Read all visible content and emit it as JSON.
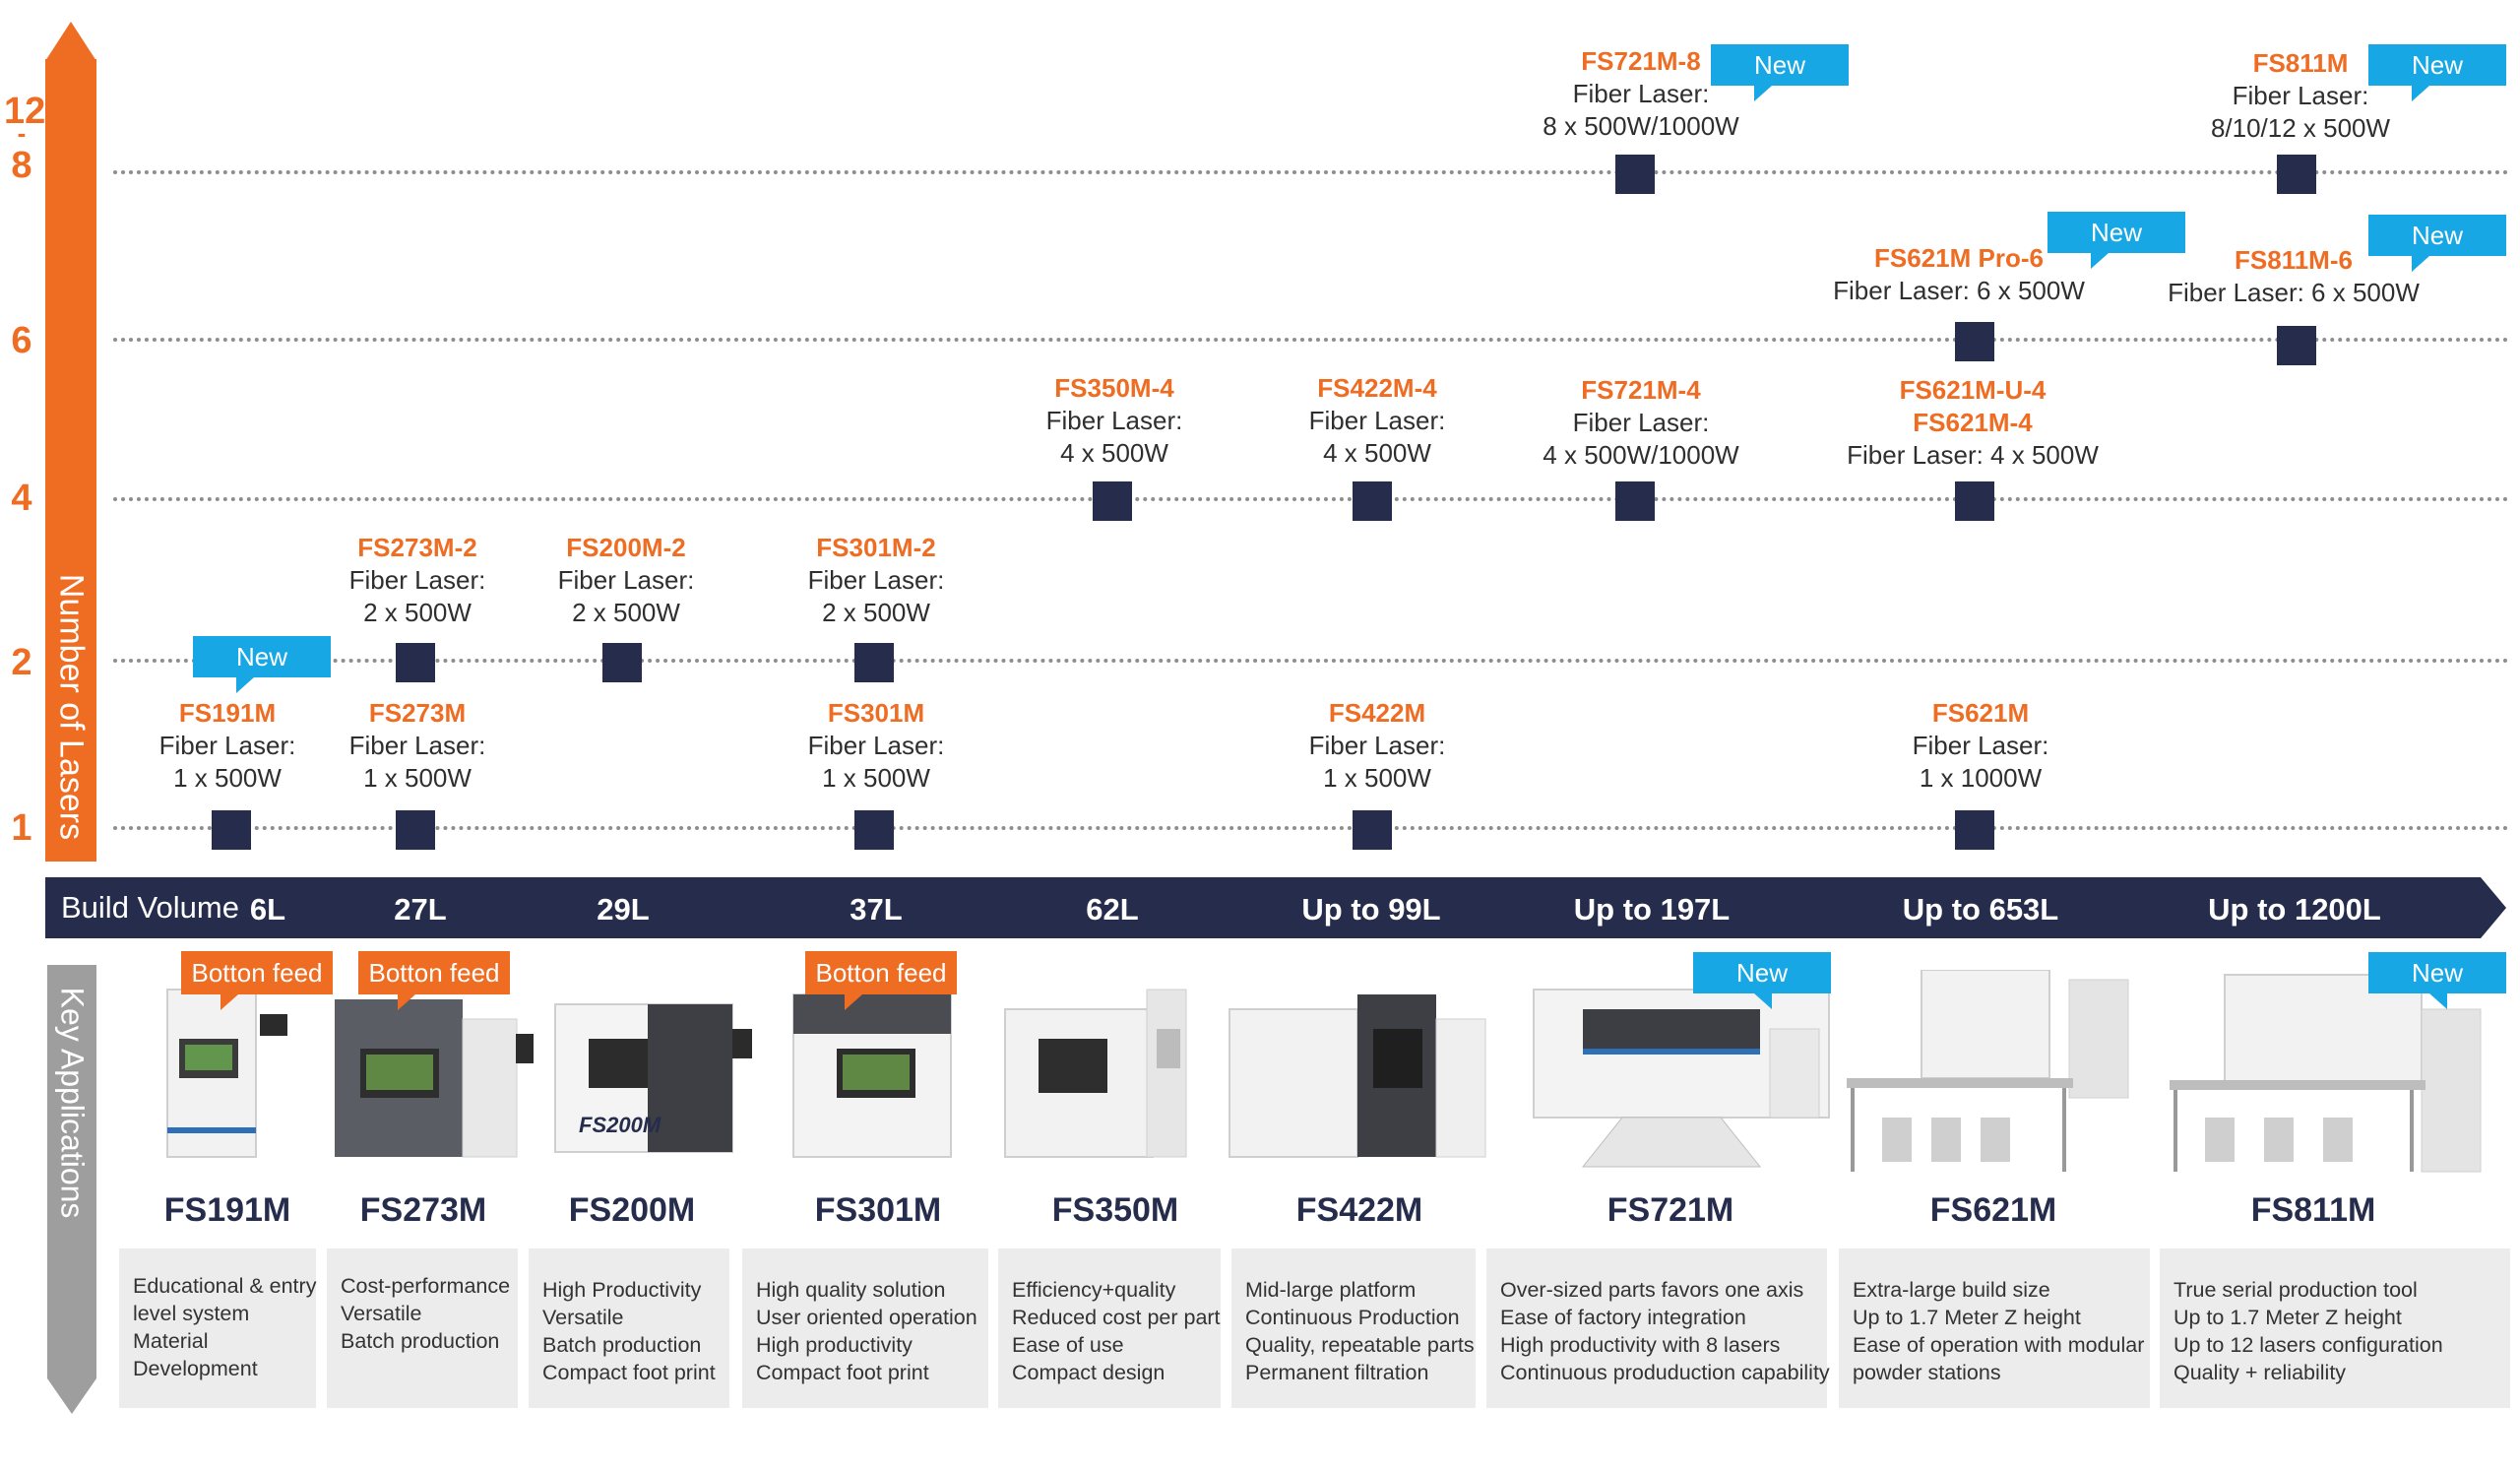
{
  "y_axis": {
    "title": "Number of Lasers",
    "ticks": [
      {
        "label": "1",
        "value": 1
      },
      {
        "label": "2",
        "value": 2
      },
      {
        "label": "4",
        "value": 4
      },
      {
        "label": "6",
        "value": 6
      },
      {
        "label_top": "12",
        "label_mid": "-",
        "label": "8",
        "value": 8
      }
    ]
  },
  "build_volume_bar": {
    "title": "Build Volume",
    "volumes": [
      "6L",
      "27L",
      "29L",
      "37L",
      "62L",
      "Up to 99L",
      "Up to 197L",
      "Up to 653L",
      "Up to 1200L"
    ]
  },
  "key_applications_title": "Key Applications",
  "badges": {
    "new": "New",
    "bottom_feed": "Botton feed"
  },
  "configs": [
    {
      "name": "FS191M",
      "line1": "Fiber Laser:",
      "line2": "1 x 500W",
      "lasers": 1,
      "column": 0,
      "is_new": true
    },
    {
      "name": "FS273M",
      "line1": "Fiber Laser:",
      "line2": "1 x 500W",
      "lasers": 1,
      "column": 1
    },
    {
      "name": "FS273M-2",
      "line1": "Fiber Laser:",
      "line2": "2 x 500W",
      "lasers": 2,
      "column": 1
    },
    {
      "name": "FS200M-2",
      "line1": "Fiber Laser:",
      "line2": "2 x 500W",
      "lasers": 2,
      "column": 2
    },
    {
      "name": "FS301M",
      "line1": "Fiber Laser:",
      "line2": "1 x 500W",
      "lasers": 1,
      "column": 3
    },
    {
      "name": "FS301M-2",
      "line1": "Fiber Laser:",
      "line2": "2 x 500W",
      "lasers": 2,
      "column": 3
    },
    {
      "name": "FS350M-4",
      "line1": "Fiber Laser:",
      "line2": "4 x 500W",
      "lasers": 4,
      "column": 4
    },
    {
      "name": "FS422M",
      "line1": "Fiber Laser:",
      "line2": "1 x 500W",
      "lasers": 1,
      "column": 5
    },
    {
      "name": "FS422M-4",
      "line1": "Fiber Laser:",
      "line2": "4 x 500W",
      "lasers": 4,
      "column": 5
    },
    {
      "name": "FS721M-4",
      "line1": "Fiber Laser:",
      "line2": "4 x 500W/1000W",
      "lasers": 4,
      "column": 6
    },
    {
      "name": "FS721M-8",
      "line1": "Fiber Laser:",
      "line2": "8 x 500W/1000W",
      "lasers": 8,
      "column": 6,
      "is_new": true
    },
    {
      "name": "FS621M",
      "line1": "Fiber Laser:",
      "line2": "1 x 1000W",
      "lasers": 1,
      "column": 7
    },
    {
      "name": "FS621M-U-4",
      "name2": "FS621M-4",
      "line1": "Fiber Laser: 4 x 500W",
      "lasers": 4,
      "column": 7
    },
    {
      "name": "FS621M Pro-6",
      "line1": "Fiber Laser: 6 x 500W",
      "lasers": 6,
      "column": 7,
      "is_new": true
    },
    {
      "name": "FS811M-6",
      "line1": "Fiber Laser: 6 x 500W",
      "lasers": 6,
      "column": 8,
      "is_new": true
    },
    {
      "name": "FS811M",
      "line1": "Fiber Laser:",
      "line2": "8/10/12 x 500W",
      "lasers": "8-12",
      "column": 8,
      "is_new": true
    }
  ],
  "machines": [
    {
      "name": "FS191M",
      "badge": "Botton feed",
      "apps": [
        "Educational & entry",
        "level system",
        "Material",
        "Development"
      ]
    },
    {
      "name": "FS273M",
      "badge": "Botton feed",
      "apps": [
        "Cost-performance",
        "Versatile",
        "Batch production"
      ]
    },
    {
      "name": "FS200M",
      "apps": [
        "High Productivity",
        "Versatile",
        "Batch production",
        "Compact foot print"
      ]
    },
    {
      "name": "FS301M",
      "badge": "Botton feed",
      "apps": [
        "High quality solution",
        "User oriented operation",
        "High productivity",
        "Compact foot print"
      ]
    },
    {
      "name": "FS350M",
      "apps": [
        "Efficiency+quality",
        "Reduced cost per part",
        "Ease of use",
        "Compact design"
      ]
    },
    {
      "name": "FS422M",
      "apps": [
        "Mid-large platform",
        "Continuous Production",
        "Quality, repeatable parts",
        "Permanent filtration"
      ]
    },
    {
      "name": "FS721M",
      "badge": "New",
      "apps": [
        "Over-sized parts favors one axis",
        "Ease of factory integration",
        "High productivity with 8 lasers",
        "Continuous produduction capability"
      ]
    },
    {
      "name": "FS621M",
      "apps": [
        "Extra-large build size",
        "Up to 1.7 Meter Z height",
        "Ease of operation with modular",
        "powder stations"
      ]
    },
    {
      "name": "FS811M",
      "badge": "New",
      "apps": [
        "True serial production tool",
        "Up to 1.7 Meter Z height",
        "Up to 12 lasers configuration",
        "Quality + reliability"
      ]
    }
  ],
  "colors": {
    "orange": "#ef6c23",
    "navy": "#262c4b",
    "blue": "#16a7e4",
    "gray": "#9e9e9e",
    "panel": "#ececec"
  }
}
